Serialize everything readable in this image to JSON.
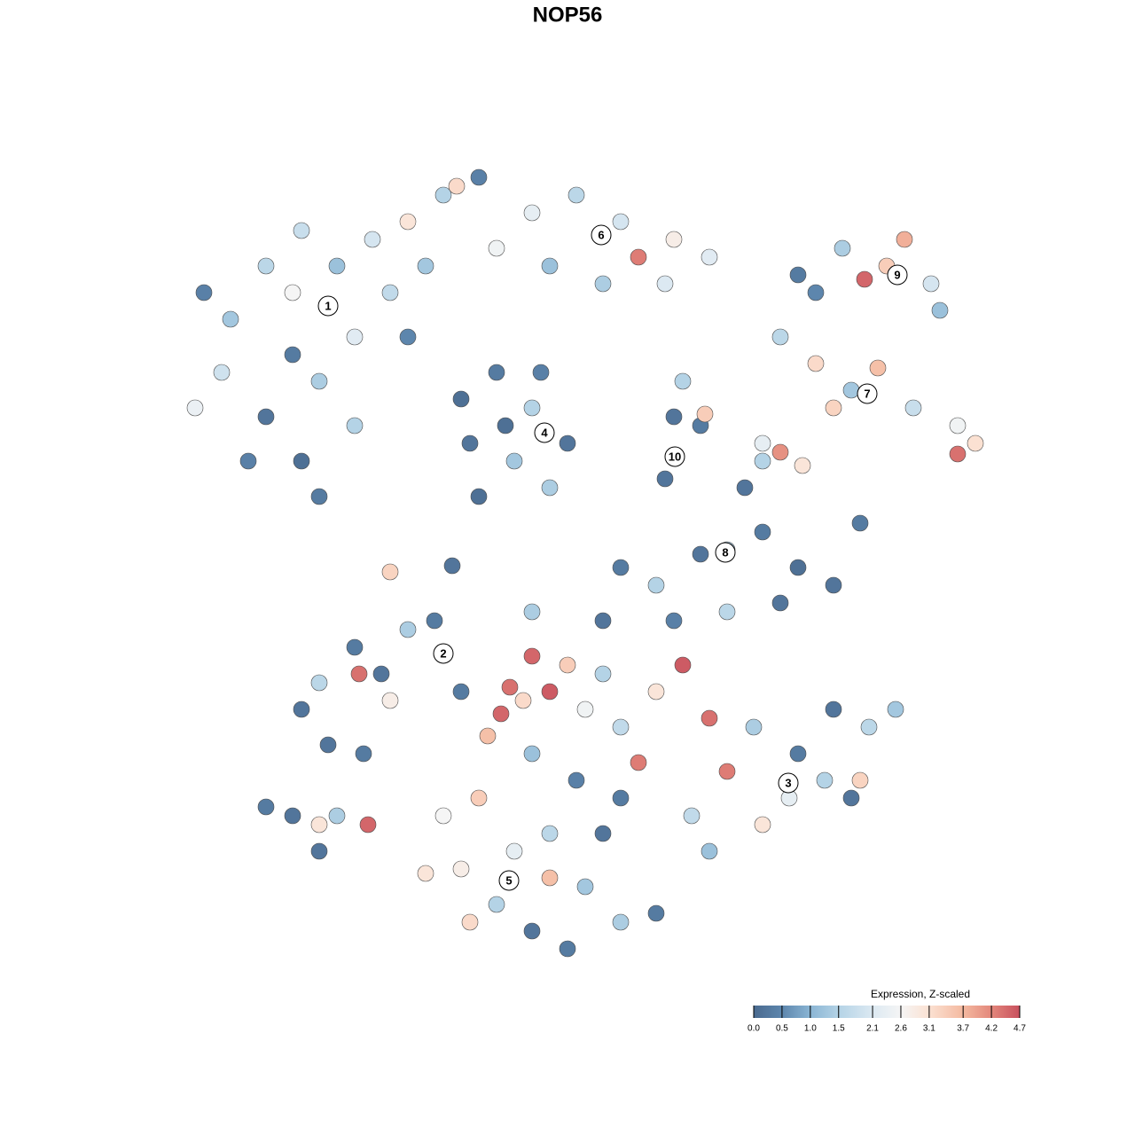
{
  "chart_data": {
    "type": "scatter",
    "title": "NOP56",
    "xlim": [
      0,
      1280
    ],
    "ylim": [
      1280,
      0
    ],
    "x": [
      230,
      260,
      300,
      340,
      380,
      420,
      330,
      360,
      400,
      440,
      300,
      340,
      360,
      400,
      250,
      220,
      480,
      460,
      330,
      280,
      500,
      540,
      600,
      650,
      700,
      760,
      800,
      720,
      560,
      620,
      460,
      515,
      680,
      750,
      900,
      950,
      975,
      1020,
      1050,
      1060,
      920,
      1000,
      880,
      920,
      960,
      990,
      1030,
      1080,
      1100,
      1080,
      940,
      860,
      905,
      880,
      520,
      560,
      600,
      640,
      580,
      540,
      620,
      530,
      610,
      570,
      760,
      790,
      770,
      750,
      795,
      840,
      860,
      900,
      940,
      970,
      880,
      820,
      790,
      860,
      700,
      740,
      680,
      760,
      820,
      600,
      340,
      360,
      400,
      430,
      460,
      490,
      405,
      370,
      410,
      440,
      520,
      575,
      620,
      565,
      600,
      640,
      590,
      660,
      700,
      720,
      770,
      800,
      740,
      680,
      550,
      600,
      650,
      700,
      850,
      900,
      940,
      980,
      1010,
      890,
      860,
      820,
      930,
      960,
      800,
      780,
      970,
      500,
      540,
      580,
      620,
      660,
      700,
      640,
      600,
      560,
      520,
      620,
      530,
      680,
      740,
      480,
      300,
      330,
      360,
      380,
      415,
      360,
      440,
      510
    ],
    "y": [
      330,
      360,
      300,
      260,
      300,
      270,
      400,
      430,
      380,
      330,
      470,
      520,
      560,
      480,
      420,
      460,
      300,
      380,
      330,
      520,
      220,
      200,
      240,
      220,
      250,
      270,
      290,
      290,
      280,
      300,
      250,
      210,
      320,
      320,
      310,
      280,
      315,
      270,
      320,
      350,
      330,
      300,
      380,
      410,
      440,
      415,
      460,
      480,
      500,
      512,
      460,
      500,
      525,
      510,
      450,
      420,
      460,
      500,
      520,
      560,
      550,
      500,
      420,
      480,
      470,
      480,
      430,
      540,
      467,
      550,
      600,
      640,
      660,
      590,
      680,
      620,
      625,
      520,
      640,
      660,
      700,
      700,
      690,
      690,
      800,
      770,
      730,
      760,
      710,
      700,
      760,
      840,
      850,
      790,
      780,
      775,
      780,
      805,
      740,
      750,
      790,
      800,
      820,
      860,
      750,
      810,
      780,
      760,
      830,
      850,
      880,
      900,
      820,
      850,
      800,
      820,
      800,
      900,
      930,
      870,
      880,
      900,
      960,
      920,
      880,
      920,
      900,
      960,
      940,
      1000,
      1040,
      1070,
      1050,
      1020,
      980,
      990,
      1040,
      940,
      1030,
      985,
      910,
      920,
      930,
      920,
      930,
      960,
      645,
      638
    ],
    "values": [
      0.4,
      1.3,
      1.6,
      1.8,
      1.2,
      2.0,
      0.3,
      1.4,
      2.2,
      1.7,
      0.2,
      0.1,
      0.3,
      1.5,
      1.9,
      2.4,
      1.3,
      0.5,
      2.6,
      0.4,
      1.5,
      0.4,
      2.3,
      1.6,
      2.0,
      2.8,
      2.2,
      4.3,
      2.5,
      1.2,
      3.0,
      3.2,
      1.4,
      2.1,
      0.3,
      1.4,
      4.5,
      3.8,
      2.0,
      1.2,
      0.5,
      3.4,
      1.6,
      3.2,
      1.3,
      3.6,
      1.8,
      2.5,
      3.1,
      4.4,
      3.3,
      2.3,
      3.0,
      4.1,
      0.1,
      0.3,
      1.5,
      0.2,
      1.3,
      0.1,
      1.4,
      0.2,
      0.4,
      0.1,
      0.2,
      0.3,
      1.5,
      0.2,
      3.4,
      0.2,
      0.3,
      0.1,
      0.2,
      0.3,
      0.2,
      1.4,
      0.2,
      1.5,
      0.3,
      1.5,
      0.2,
      0.4,
      1.6,
      1.4,
      0.2,
      1.6,
      0.3,
      0.2,
      1.4,
      0.3,
      4.4,
      0.2,
      0.3,
      2.8,
      0.3,
      4.4,
      4.6,
      4.5,
      4.5,
      3.4,
      3.2,
      2.5,
      1.7,
      4.3,
      4.6,
      4.4,
      3.0,
      1.5,
      3.6,
      1.2,
      0.4,
      0.3,
      1.4,
      0.3,
      0.2,
      1.6,
      1.3,
      2.3,
      3.0,
      4.3,
      1.5,
      0.2,
      1.2,
      1.7,
      3.3,
      2.6,
      3.4,
      2.3,
      1.6,
      1.3,
      1.4,
      0.3,
      0.2,
      1.5,
      2.8,
      3.6,
      3.2,
      0.2,
      0.3,
      3.0,
      0.3,
      0.2,
      3.0,
      1.4,
      4.5,
      0.2,
      3.3,
      0.2
    ],
    "cluster_labels": {
      "labels": [
        "1",
        "2",
        "3",
        "4",
        "5",
        "6",
        "7",
        "8",
        "9",
        "10"
      ],
      "x": [
        370,
        500,
        889,
        614,
        574,
        678,
        978,
        818,
        1012,
        761
      ],
      "y": [
        345,
        737,
        883,
        488,
        993,
        265,
        444,
        623,
        310,
        515
      ]
    },
    "colorbar": {
      "title": "Expression, Z-scaled",
      "lim": [
        0,
        4.7
      ],
      "ticks": [
        {
          "value": 0,
          "label": "0.0"
        },
        0.5,
        {
          "value": 1,
          "label": "1.0"
        },
        1.5,
        2.1,
        2.6,
        3.1,
        3.7,
        4.2,
        4.7
      ],
      "colors": [
        "#4a6a8f",
        "#5d86ad",
        "#8ab5d4",
        "#b4d3e6",
        "#dce9f2",
        "#f5f5f5",
        "#fbe1d2",
        "#f4b9a0",
        "#e3877b",
        "#c8505e"
      ]
    }
  }
}
